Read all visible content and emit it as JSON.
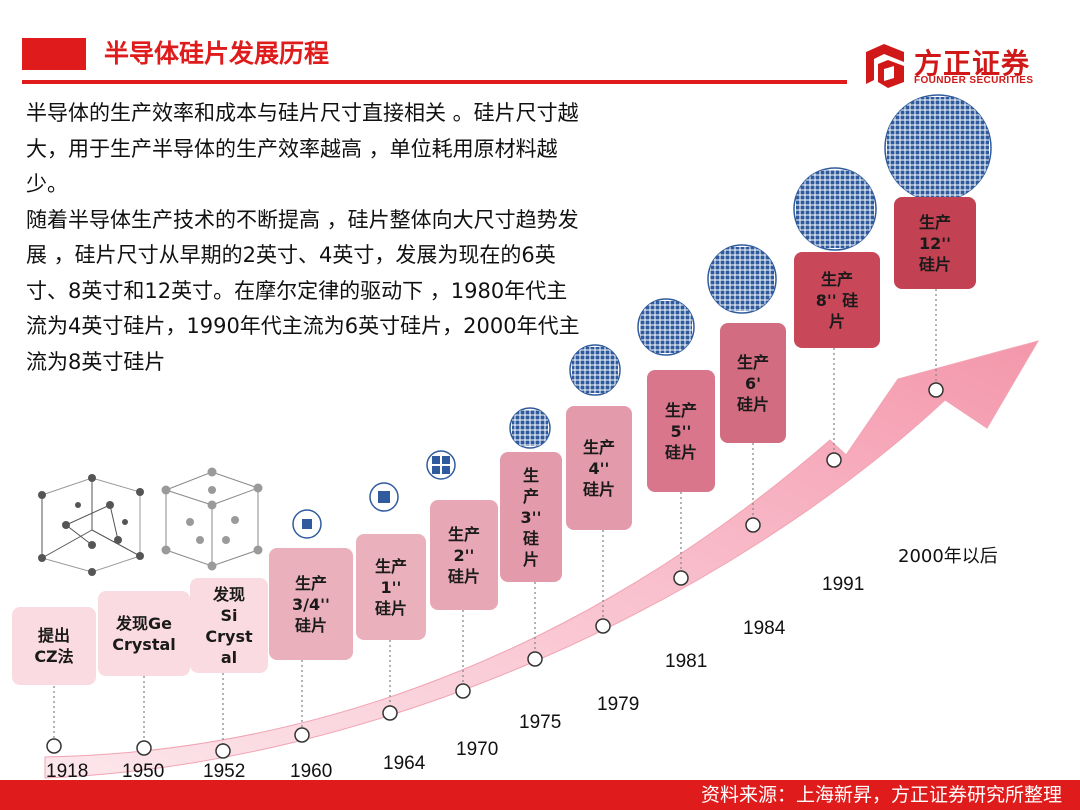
{
  "header": {
    "title": "半导体硅片发展历程",
    "accent_color": "#e01b1b"
  },
  "logo": {
    "name_cn": "方正证券",
    "name_en": "FOUNDER SECURITIES"
  },
  "description": {
    "para1": "半导体的生产效率和成本与硅片尺寸直接相关 。硅片尺寸越大，用于生产半导体的生产效率越高 ，单位耗用原材料越少。",
    "para2": "随着半导体生产技术的不断提高 ，硅片整体向大尺寸趋势发展 ，硅片尺寸从早期的2英寸、4英寸，发展为现在的6英寸、8英寸和12英寸。在摩尔定律的驱动下 ，1980年代主流为4英寸硅片，1990年代主流为6英寸硅片，2000年代主流为8英寸硅片"
  },
  "timeline": [
    {
      "year": "1918",
      "lines": [
        "提出",
        "CZ法"
      ]
    },
    {
      "year": "1950",
      "lines": [
        "发现Ge",
        "Crystal"
      ]
    },
    {
      "year": "1952",
      "lines": [
        "发现",
        "Si",
        "Cryst",
        "al"
      ]
    },
    {
      "year": "1960",
      "lines": [
        "生产",
        "3/4''",
        "硅片"
      ]
    },
    {
      "year": "1964",
      "lines": [
        "生产",
        "1''",
        "硅片"
      ]
    },
    {
      "year": "1970",
      "lines": [
        "生产",
        "2''",
        "硅片"
      ]
    },
    {
      "year": "1975",
      "lines": [
        "生",
        "产",
        "3''",
        "硅",
        "片"
      ]
    },
    {
      "year": "1979",
      "lines": [
        "生产",
        "4''",
        "硅片"
      ]
    },
    {
      "year": "1981",
      "lines": [
        "生产",
        "5''",
        "硅片"
      ]
    },
    {
      "year": "1984",
      "lines": [
        "生产",
        "6'",
        "硅片"
      ]
    },
    {
      "year": "1991",
      "lines": [
        "生产",
        "8'' 硅",
        "片"
      ]
    },
    {
      "year": "2000年以后",
      "lines": [
        "生产",
        "12''",
        "硅片"
      ]
    }
  ],
  "footer": {
    "source": "资料来源：上海新昇，方正证券研究所整理"
  }
}
